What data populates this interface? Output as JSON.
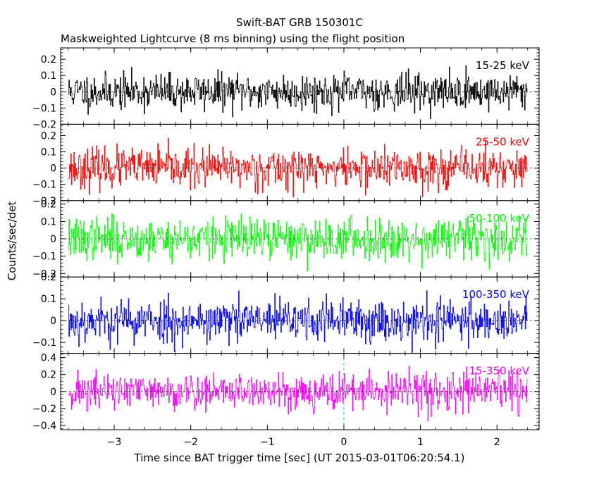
{
  "title": "Swift-BAT GRB 150301C",
  "subtitle": "Maskweighted Lightcurve (8 ms binning) using the flight position",
  "xlabel": "Time since BAT trigger time [sec] (UT 2015-03-01T06:20:54.1)",
  "ylabel": "Counts/sec/det",
  "colors": {
    "axis": "#000000",
    "trigger_line": "#00aaaa"
  },
  "chart_data": {
    "type": "line",
    "binning_sec": 0.008,
    "xlim": [
      -3.7,
      2.55
    ],
    "x_ticks": [
      -3,
      -2,
      -1,
      0,
      1,
      2
    ],
    "x_tick_labels": [
      "−3",
      "−2",
      "−1",
      "0",
      "1",
      "2"
    ],
    "data_x_range": [
      -3.6,
      2.4
    ],
    "trigger_time": 0,
    "panels": [
      {
        "name": "15-25 keV",
        "color": "#000000",
        "ylim": [
          -0.2,
          0.27
        ],
        "y_ticks": [
          -0.2,
          -0.1,
          0,
          0.1,
          0.2
        ],
        "y_tick_labels": [
          "−0.2",
          "−0.1",
          "0",
          "0.1",
          "0.2"
        ],
        "noise_amplitude": 0.055,
        "seed": 11
      },
      {
        "name": "25-50 keV",
        "color": "#ff0000",
        "ylim": [
          -0.2,
          0.27
        ],
        "y_ticks": [
          -0.2,
          -0.1,
          0,
          0.1,
          0.2
        ],
        "y_tick_labels": [
          "−0.2",
          "−0.1",
          "0",
          "0.1",
          "0.2"
        ],
        "noise_amplitude": 0.06,
        "seed": 23
      },
      {
        "name": "50-100 keV",
        "color": "#00ff00",
        "ylim": [
          -0.22,
          0.22
        ],
        "y_ticks": [
          -0.2,
          -0.1,
          0,
          0.1,
          0.2
        ],
        "y_tick_labels": [
          "−0.2",
          "−0.1",
          "0",
          "0.1",
          "0.2"
        ],
        "noise_amplitude": 0.06,
        "seed": 37
      },
      {
        "name": "100-350 keV",
        "color": "#0000ff",
        "ylim": [
          -0.15,
          0.2
        ],
        "y_ticks": [
          -0.1,
          0,
          0.1,
          0.2
        ],
        "y_tick_labels": [
          "−0.1",
          "0",
          "0.1",
          "0.2"
        ],
        "noise_amplitude": 0.05,
        "seed": 53
      },
      {
        "name": "15-350 keV",
        "color": "#ff00ff",
        "ylim": [
          -0.45,
          0.45
        ],
        "y_ticks": [
          -0.4,
          -0.2,
          0,
          0.2,
          0.4
        ],
        "y_tick_labels": [
          "−0.4",
          "−0.2",
          "0",
          "0.2",
          "0.4"
        ],
        "noise_amplitude": 0.11,
        "seed": 71
      }
    ]
  }
}
